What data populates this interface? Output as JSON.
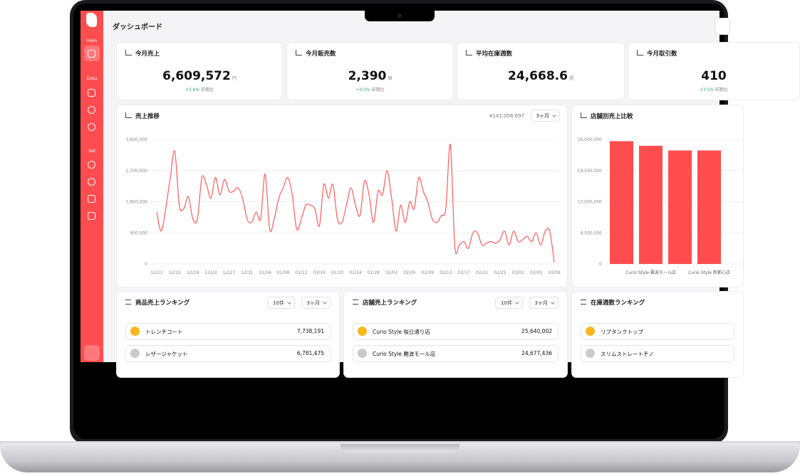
{
  "sidebar": {
    "sections": [
      "Main",
      "Data",
      "Set"
    ]
  },
  "header": {
    "title": "ダッシュボード"
  },
  "kpis": [
    {
      "title": "今月売上",
      "value": "6,609,572",
      "unit": "円",
      "change": "+3.6%",
      "change_label": "前期比"
    },
    {
      "title": "今月販売数",
      "value": "2,390",
      "unit": "個",
      "change": "+0.5%",
      "change_label": "前期比"
    },
    {
      "title": "平均在庫週数",
      "value": "24,668.6",
      "unit": "週"
    },
    {
      "title": "今月取引数",
      "value": "410",
      "change": "+3.5%",
      "change_label": "前期比"
    }
  ],
  "chart_data": [
    {
      "type": "line",
      "title": "売上推移",
      "total": "¥141,056,697",
      "period": "3ヶ月",
      "color": "#ff5a5c",
      "categories": [
        "12/11",
        null,
        null,
        null,
        "12/15",
        null,
        null,
        null,
        "12/19",
        null,
        null,
        null,
        "12/23",
        null,
        null,
        null,
        "12/27",
        null,
        null,
        null,
        "12/31",
        null,
        null,
        null,
        "01/04",
        null,
        null,
        null,
        "01/08",
        null,
        null,
        null,
        "01/12",
        null,
        null,
        null,
        "01/16",
        null,
        null,
        null,
        "01/20",
        null,
        null,
        null,
        "01/24",
        null,
        null,
        null,
        "01/28",
        null,
        null,
        null,
        "02/01",
        null,
        null,
        null,
        "02/05",
        null,
        null,
        null,
        "02/09",
        null,
        null,
        null,
        "02/13",
        null,
        null,
        null,
        "02/17",
        null,
        null,
        null,
        "02/21",
        null,
        null,
        null,
        "02/25",
        null,
        null,
        null,
        "03/01",
        null,
        null,
        null,
        "03/05",
        null,
        null,
        null,
        "03/09"
      ],
      "values": [
        1500000,
        950000,
        1600000,
        2500000,
        3250000,
        1700000,
        1600000,
        1950000,
        1300000,
        1300000,
        2500000,
        2300000,
        1900000,
        2500000,
        2000000,
        2450000,
        2100000,
        2100000,
        2200000,
        1900000,
        1300000,
        1200000,
        1500000,
        1300000,
        2600000,
        1000000,
        1300000,
        1900000,
        2200000,
        2500000,
        2000000,
        1000000,
        1300000,
        1700000,
        1700000,
        1600000,
        1100000,
        2300000,
        1900000,
        2300000,
        1300000,
        1200000,
        1700000,
        2200000,
        1700000,
        1400000,
        2400000,
        2000000,
        1200000,
        2100000,
        2000000,
        2700000,
        1900000,
        950000,
        1700000,
        1200000,
        1800000,
        1600000,
        2500000,
        2100000,
        1800000,
        1300000,
        1200000,
        1400000,
        1600000,
        3450000,
        500000,
        550000,
        650000,
        450000,
        900000,
        900000,
        550000,
        600000,
        650000,
        600000,
        700000,
        950000,
        550000,
        950000,
        650000,
        700000,
        800000,
        650000,
        900000,
        550000,
        950000,
        950000,
        50000
      ],
      "ylim": [
        0,
        3600000
      ],
      "yticks": [
        0,
        {
          "value": 900000,
          "label": "900,000"
        },
        {
          "value": 1800000,
          "label": "1,800,000"
        },
        {
          "value": 2700000,
          "label": "2,700,000"
        },
        {
          "value": 3600000,
          "label": "3,600,000"
        }
      ],
      "grid": true
    },
    {
      "type": "bar",
      "title": "店舗別売上比較",
      "color": "#ff4d4f",
      "categories": [
        null,
        "Curio Style 難波モール店",
        null,
        "Curio Style 新都心店"
      ],
      "values": [
        25640002,
        24677436,
        23700000,
        23700000
      ],
      "ylim": [
        0,
        26000000
      ],
      "yticks": [
        0,
        {
          "value": 6500000,
          "label": "6,500,000"
        },
        {
          "value": 13000000,
          "label": "13,000,000"
        },
        {
          "value": 19500000,
          "label": "19,500,000"
        },
        {
          "value": 26000000,
          "label": "26,000,000"
        }
      ],
      "grid": true
    }
  ],
  "rankings": [
    {
      "title": "商品売上ランキング",
      "count": "10件",
      "period": "3ヶ月",
      "rows": [
        {
          "name": "トレンチコート",
          "value": "7,738,191"
        },
        {
          "name": "レザージャケット",
          "value": "6,781,475"
        }
      ]
    },
    {
      "title": "店舗売上ランキング",
      "count": "10件",
      "period": "3ヶ月",
      "rows": [
        {
          "name": "Curio Style 桜丘通り店",
          "value": "25,640,002"
        },
        {
          "name": "Curio Style 難波モール店",
          "value": "24,677,436"
        }
      ]
    },
    {
      "title": "在庫週数ランキング",
      "rows": [
        {
          "name": "リブタンクトップ"
        },
        {
          "name": "スリムストレートチノ"
        }
      ]
    }
  ]
}
